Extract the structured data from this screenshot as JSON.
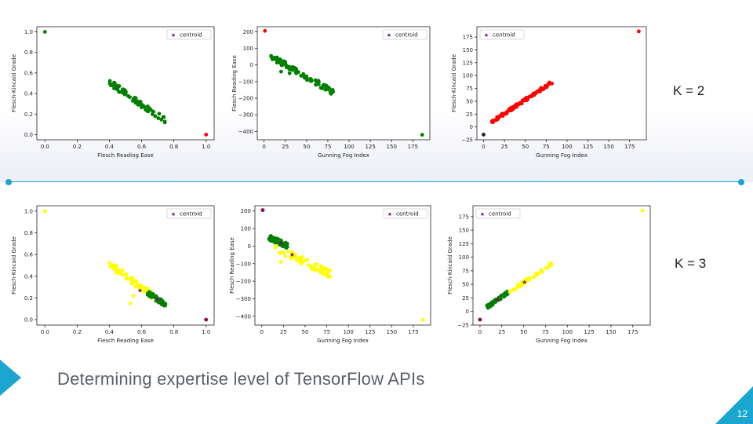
{
  "slide": {
    "title": "Determining expertise level of TensorFlow APIs",
    "page_number": "12",
    "k2_label": "K = 2",
    "k3_label": "K = 3"
  },
  "colors": {
    "accent": "#1aa6cf",
    "green": "#008000",
    "red": "#ff0000",
    "yellow": "#ffff00",
    "centroid": "#7b0c6e",
    "crimson": "#b0003a",
    "black": "#222222"
  },
  "chart_data": [
    {
      "type": "scatter",
      "xlabel": "Flesch Reading Ease",
      "ylabel": "Flesch-Kincaid Grade",
      "xlim": [
        -0.05,
        1.05
      ],
      "ylim": [
        -0.05,
        1.05
      ],
      "xticks": [
        0.0,
        0.2,
        0.4,
        0.6,
        0.8,
        1.0
      ],
      "xtick_labels": [
        "0.0",
        "0.2",
        "0.4",
        "0.6",
        "0.8",
        "1.0"
      ],
      "yticks": [
        0.0,
        0.2,
        0.4,
        0.6,
        0.8,
        1.0
      ],
      "ytick_labels": [
        "0.0",
        "0.2",
        "0.4",
        "0.6",
        "0.8",
        "1.0"
      ],
      "legend": "centroid",
      "legend_position": "top-right",
      "series": [
        {
          "color": "green",
          "band": {
            "x0": 0.4,
            "y0": 0.51,
            "x1": 0.76,
            "y1": 0.12,
            "spread": 0.03,
            "n": 70
          },
          "points": [
            [
              0.0,
              1.0
            ],
            [
              0.45,
              0.45
            ],
            [
              0.5,
              0.4
            ]
          ]
        },
        {
          "color": "red",
          "points": [
            [
              1.0,
              0.0
            ]
          ]
        }
      ],
      "centroids": []
    },
    {
      "type": "scatter",
      "xlabel": "Gunning Fog Index",
      "ylabel": "Flesch Reading Ease",
      "xlim": [
        -8,
        195
      ],
      "ylim": [
        -450,
        230
      ],
      "xticks": [
        0,
        25,
        50,
        75,
        100,
        125,
        150,
        175
      ],
      "xtick_labels": [
        "0",
        "25",
        "50",
        "75",
        "100",
        "125",
        "150",
        "175"
      ],
      "yticks": [
        -400,
        -300,
        -200,
        -100,
        0,
        100,
        200
      ],
      "ytick_labels": [
        "−400",
        "−300",
        "−200",
        "−100",
        "0",
        "100",
        "200"
      ],
      "legend": "centroid",
      "legend_position": "top-right",
      "series": [
        {
          "color": "green",
          "band": {
            "x0": 8,
            "y0": 50,
            "x1": 82,
            "y1": -165,
            "spread": 18,
            "n": 90
          },
          "points": [
            [
              186,
              -420
            ],
            [
              20,
              -40
            ],
            [
              30,
              -50
            ]
          ]
        },
        {
          "color": "red",
          "points": [
            [
              1,
              205
            ]
          ]
        }
      ],
      "centroids": []
    },
    {
      "type": "scatter",
      "xlabel": "Gunning Fog Index",
      "ylabel": "Flesch-Kincaid Grade",
      "xlim": [
        -8,
        195
      ],
      "ylim": [
        -25,
        195
      ],
      "xticks": [
        0,
        25,
        50,
        75,
        100,
        125,
        150,
        175
      ],
      "xtick_labels": [
        "0",
        "25",
        "50",
        "75",
        "100",
        "125",
        "150",
        "175"
      ],
      "yticks": [
        -25,
        0,
        25,
        50,
        75,
        100,
        125,
        150,
        175
      ],
      "ytick_labels": [
        "−25",
        "0",
        "25",
        "50",
        "75",
        "100",
        "125",
        "150",
        "175"
      ],
      "legend": "centroid",
      "legend_position": "top-left",
      "series": [
        {
          "color": "red",
          "band": {
            "x0": 8,
            "y0": 8,
            "x1": 82,
            "y1": 87,
            "spread": 3,
            "n": 90
          },
          "points": [
            [
              186,
              186
            ]
          ]
        },
        {
          "color": "black",
          "points": [
            [
              0,
              -15
            ]
          ]
        }
      ],
      "centroids": []
    },
    {
      "type": "scatter",
      "xlabel": "Flesch Reading Ease",
      "ylabel": "Flesch-Kincaid Grade",
      "xlim": [
        -0.05,
        1.05
      ],
      "ylim": [
        -0.05,
        1.05
      ],
      "xticks": [
        0.0,
        0.2,
        0.4,
        0.6,
        0.8,
        1.0
      ],
      "xtick_labels": [
        "0.0",
        "0.2",
        "0.4",
        "0.6",
        "0.8",
        "1.0"
      ],
      "yticks": [
        0.0,
        0.2,
        0.4,
        0.6,
        0.8,
        1.0
      ],
      "ytick_labels": [
        "0.0",
        "0.2",
        "0.4",
        "0.6",
        "0.8",
        "1.0"
      ],
      "legend": "centroid",
      "legend_position": "top-right",
      "series": [
        {
          "color": "yellow",
          "band": {
            "x0": 0.4,
            "y0": 0.51,
            "x1": 0.66,
            "y1": 0.23,
            "spread": 0.035,
            "n": 55
          },
          "points": [
            [
              0.0,
              1.0
            ],
            [
              0.53,
              0.15
            ],
            [
              0.55,
              0.22
            ]
          ]
        },
        {
          "color": "green",
          "band": {
            "x0": 0.63,
            "y0": 0.26,
            "x1": 0.76,
            "y1": 0.12,
            "spread": 0.025,
            "n": 40
          },
          "points": []
        },
        {
          "color": "crimson",
          "points": [
            [
              1.0,
              0.0
            ]
          ]
        }
      ],
      "centroids": [
        [
          0.59,
          0.27
        ],
        [
          0.7,
          0.19
        ],
        [
          1.0,
          0.0
        ]
      ]
    },
    {
      "type": "scatter",
      "xlabel": "Gunning Fog Index",
      "ylabel": "Flesch Reading Ease",
      "xlim": [
        -8,
        195
      ],
      "ylim": [
        -450,
        230
      ],
      "xticks": [
        0,
        25,
        50,
        75,
        100,
        125,
        150,
        175
      ],
      "xtick_labels": [
        "0",
        "25",
        "50",
        "75",
        "100",
        "125",
        "150",
        "175"
      ],
      "yticks": [
        -400,
        -300,
        -200,
        -100,
        0,
        100,
        200
      ],
      "ytick_labels": [
        "−400",
        "−300",
        "−200",
        "−100",
        "0",
        "100",
        "200"
      ],
      "legend": "centroid",
      "legend_position": "top-right",
      "series": [
        {
          "color": "green",
          "band": {
            "x0": 8,
            "y0": 50,
            "x1": 30,
            "y1": 0,
            "spread": 15,
            "n": 60
          },
          "points": []
        },
        {
          "color": "yellow",
          "band": {
            "x0": 15,
            "y0": -10,
            "x1": 82,
            "y1": -165,
            "spread": 22,
            "n": 60
          },
          "points": [
            [
              186,
              -420
            ],
            [
              22,
              -90
            ],
            [
              40,
              -80
            ]
          ]
        },
        {
          "color": "crimson",
          "points": [
            [
              1,
              205
            ]
          ]
        }
      ],
      "centroids": [
        [
          22,
          15
        ],
        [
          35,
          -50
        ],
        [
          1,
          205
        ]
      ]
    },
    {
      "type": "scatter",
      "xlabel": "Gunning Fog Index",
      "ylabel": "Flesch-Kincaid Grade",
      "xlim": [
        -8,
        195
      ],
      "ylim": [
        -25,
        195
      ],
      "xticks": [
        0,
        25,
        50,
        75,
        100,
        125,
        150,
        175
      ],
      "xtick_labels": [
        "0",
        "25",
        "50",
        "75",
        "100",
        "125",
        "150",
        "175"
      ],
      "yticks": [
        -25,
        0,
        25,
        50,
        75,
        100,
        125,
        150,
        175
      ],
      "ytick_labels": [
        "−25",
        "0",
        "25",
        "50",
        "75",
        "100",
        "125",
        "150",
        "175"
      ],
      "legend": "centroid",
      "legend_position": "top-left",
      "series": [
        {
          "color": "green",
          "band": {
            "x0": 8,
            "y0": 8,
            "x1": 33,
            "y1": 36,
            "spread": 3,
            "n": 55
          },
          "points": []
        },
        {
          "color": "yellow",
          "band": {
            "x0": 33,
            "y0": 36,
            "x1": 82,
            "y1": 87,
            "spread": 3,
            "n": 45
          },
          "points": [
            [
              186,
              186
            ]
          ]
        },
        {
          "color": "crimson",
          "points": [
            [
              0,
              -15
            ]
          ]
        }
      ],
      "centroids": [
        [
          51,
          54
        ],
        [
          20,
          22
        ],
        [
          0,
          -15
        ]
      ]
    }
  ]
}
